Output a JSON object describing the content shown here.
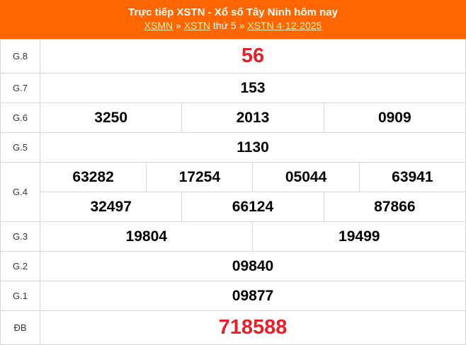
{
  "header": {
    "title": "Trực tiếp XSTN - Xổ số Tây Ninh hôm nay",
    "crumb1": "XSMN",
    "sep1": " » ",
    "crumb2": "XSTN",
    "mid": " thứ 5",
    "sep2": " » ",
    "crumb3": "XSTN 4-12-2025"
  },
  "prizes": [
    {
      "label": "G.8",
      "rows": [
        [
          "56"
        ]
      ],
      "highlight": true
    },
    {
      "label": "G.7",
      "rows": [
        [
          "153"
        ]
      ]
    },
    {
      "label": "G.6",
      "rows": [
        [
          "3250",
          "2013",
          "0909"
        ]
      ]
    },
    {
      "label": "G.5",
      "rows": [
        [
          "1130"
        ]
      ]
    },
    {
      "label": "G.4",
      "rows": [
        [
          "63282",
          "17254",
          "05044",
          "63941"
        ],
        [
          "32497",
          "66124",
          "87866"
        ]
      ]
    },
    {
      "label": "G.3",
      "rows": [
        [
          "19804",
          "19499"
        ]
      ]
    },
    {
      "label": "G.2",
      "rows": [
        [
          "09840"
        ]
      ]
    },
    {
      "label": "G.1",
      "rows": [
        [
          "09877"
        ]
      ]
    },
    {
      "label": "ĐB",
      "rows": [
        [
          "718588"
        ]
      ],
      "highlight": true
    }
  ],
  "colors": {
    "header": "#ff6600",
    "highlight": "#e8202a"
  }
}
